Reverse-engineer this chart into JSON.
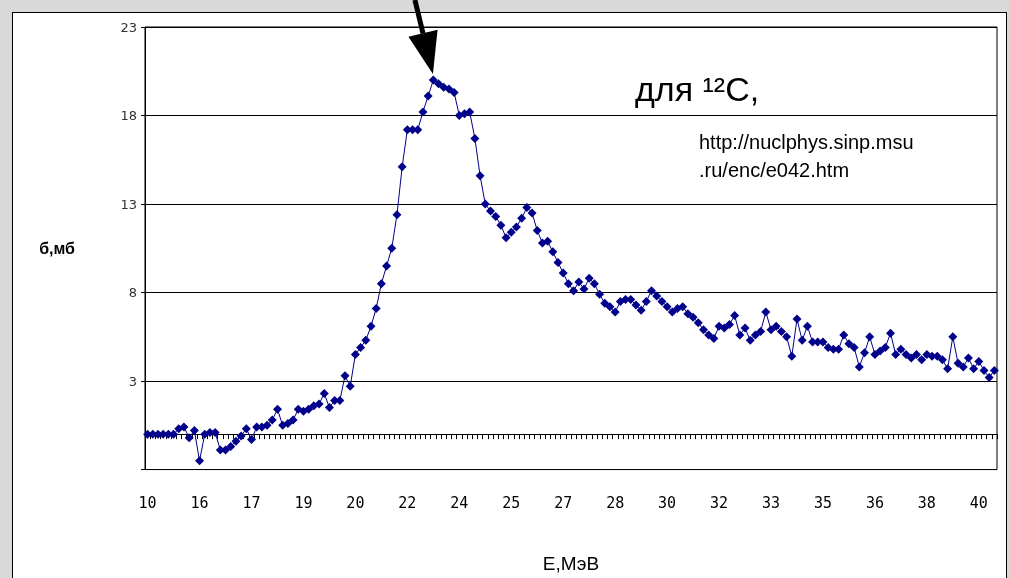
{
  "chart_data": {
    "type": "line",
    "xlabel": "E,МэВ",
    "ylabel": "б,мб",
    "categories": [
      "10",
      null,
      null,
      null,
      null,
      null,
      null,
      null,
      null,
      null,
      "16",
      null,
      null,
      null,
      null,
      null,
      null,
      null,
      null,
      null,
      "17",
      null,
      null,
      null,
      null,
      null,
      null,
      null,
      null,
      null,
      "19",
      null,
      null,
      null,
      null,
      null,
      null,
      null,
      null,
      null,
      "20",
      null,
      null,
      null,
      null,
      null,
      null,
      null,
      null,
      null,
      "22",
      null,
      null,
      null,
      null,
      null,
      null,
      null,
      null,
      null,
      "24",
      null,
      null,
      null,
      null,
      null,
      null,
      null,
      null,
      null,
      "25",
      null,
      null,
      null,
      null,
      null,
      null,
      null,
      null,
      null,
      "27",
      null,
      null,
      null,
      null,
      null,
      null,
      null,
      null,
      null,
      "28",
      null,
      null,
      null,
      null,
      null,
      null,
      null,
      null,
      null,
      "30",
      null,
      null,
      null,
      null,
      null,
      null,
      null,
      null,
      null,
      "32",
      null,
      null,
      null,
      null,
      null,
      null,
      null,
      null,
      null,
      "33",
      null,
      null,
      null,
      null,
      null,
      null,
      null,
      null,
      null,
      "35",
      null,
      null,
      null,
      null,
      null,
      null,
      null,
      null,
      null,
      "36",
      null,
      null,
      null,
      null,
      null,
      null,
      null,
      null,
      null,
      "38",
      null,
      null,
      null,
      null,
      null,
      null,
      null,
      null,
      null,
      "40",
      null,
      null,
      null
    ],
    "series": [
      {
        "color": "#00008b",
        "values": [
          0,
          0,
          0,
          0,
          0,
          0,
          0.3,
          0.4,
          -0.2,
          0.2,
          -1.5,
          0,
          0.1,
          0.1,
          -0.9,
          -0.9,
          -0.7,
          -0.4,
          -0.1,
          0.3,
          -0.3,
          0.4,
          0.4,
          0.5,
          0.8,
          1.4,
          0.5,
          0.6,
          0.8,
          1.4,
          1.3,
          1.4,
          1.6,
          1.7,
          2.3,
          1.5,
          1.9,
          1.9,
          3.3,
          2.7,
          4.5,
          4.9,
          5.3,
          6.1,
          7.1,
          8.5,
          9.5,
          10.5,
          12.4,
          15.1,
          17.2,
          17.2,
          17.2,
          18.2,
          19.1,
          20,
          19.8,
          19.6,
          19.5,
          19.3,
          18,
          18.1,
          18.2,
          16.7,
          14.6,
          13,
          12.6,
          12.3,
          11.8,
          11.1,
          11.4,
          11.7,
          12.2,
          12.8,
          12.5,
          11.5,
          10.8,
          10.9,
          10.3,
          9.7,
          9.1,
          8.5,
          8.1,
          8.6,
          8.2,
          8.8,
          8.5,
          7.9,
          7.4,
          7.2,
          6.9,
          7.5,
          7.6,
          7.6,
          7.3,
          7,
          7.5,
          8.1,
          7.8,
          7.5,
          7.2,
          6.9,
          7.1,
          7.2,
          6.8,
          6.6,
          6.3,
          5.9,
          5.6,
          5.4,
          6.1,
          6,
          6.2,
          6.7,
          5.6,
          6,
          5.3,
          5.6,
          5.8,
          6.9,
          5.9,
          6.1,
          5.8,
          5.5,
          4.4,
          6.5,
          5.3,
          6.1,
          5.2,
          5.2,
          5.2,
          4.9,
          4.8,
          4.8,
          5.6,
          5.1,
          4.9,
          3.8,
          4.6,
          5.5,
          4.5,
          4.7,
          4.9,
          5.7,
          4.5,
          4.8,
          4.5,
          4.3,
          4.5,
          4.2,
          4.5,
          4.4,
          4.4,
          4.2,
          3.7,
          5.5,
          4,
          3.8,
          4.3,
          3.7,
          4.1,
          3.6,
          3.2,
          3.6
        ]
      }
    ],
    "ylim": [
      -2,
      23
    ],
    "yticks": [
      {
        "value": -2,
        "label": null
      },
      3,
      8,
      13,
      18,
      23
    ],
    "grid": "y",
    "marker": "diamond",
    "line_style": "solid",
    "annotations": [
      "для ¹²C,",
      "http://nuclphys.sinp.msu.ru/enc/e042.htm"
    ]
  }
}
